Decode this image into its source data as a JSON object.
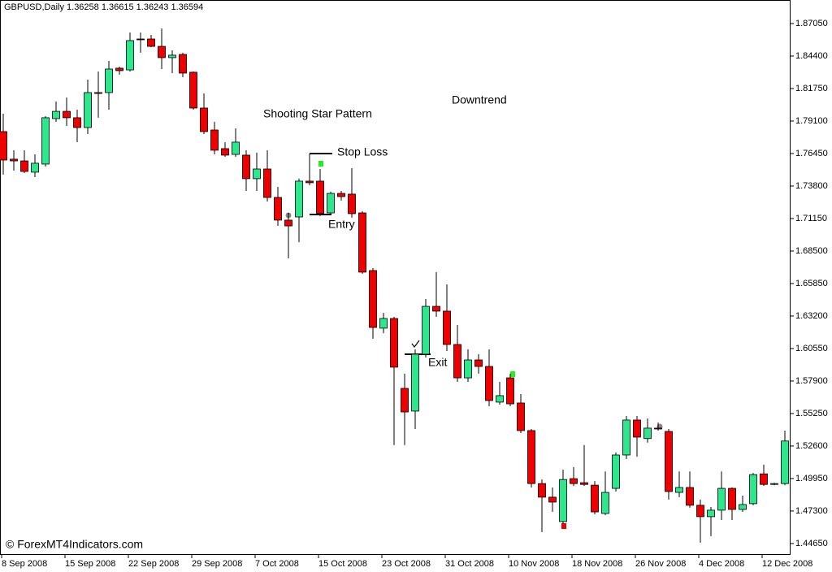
{
  "chart_data": {
    "type": "candlestick",
    "title": "GBPUSD,Daily  1.36258 1.36615 1.36243 1.36594",
    "categories": [
      "8 Sep 2008",
      null,
      null,
      null,
      null,
      null,
      "15 Sep 2008",
      null,
      null,
      null,
      null,
      null,
      "22 Sep 2008",
      null,
      null,
      null,
      null,
      null,
      "29 Sep 2008",
      null,
      null,
      null,
      null,
      null,
      "7 Oct 2008",
      null,
      null,
      null,
      null,
      null,
      "15 Oct 2008",
      null,
      null,
      null,
      null,
      null,
      "23 Oct 2008",
      null,
      null,
      null,
      null,
      null,
      "31 Oct 2008",
      null,
      null,
      null,
      null,
      null,
      "10 Nov 2008",
      null,
      null,
      null,
      null,
      null,
      "18 Nov 2008",
      null,
      null,
      null,
      null,
      null,
      "26 Nov 2008",
      null,
      null,
      null,
      null,
      null,
      "4 Dec 2008",
      null,
      null,
      null,
      null,
      null,
      "12 Dec 2008",
      null,
      null
    ],
    "open": [
      1.7824,
      1.7599,
      1.7585,
      1.7493,
      1.7559,
      1.793,
      1.7989,
      1.7937,
      1.7857,
      1.8142,
      1.8142,
      1.8341,
      1.8327,
      1.8579,
      1.8579,
      1.8519,
      1.8427,
      1.8453,
      1.8308,
      1.8016,
      1.7837,
      1.7685,
      1.7638,
      1.7632,
      1.744,
      1.7519,
      1.7287,
      1.7102,
      1.7128,
      1.742,
      1.742,
      1.7161,
      1.732,
      1.7314,
      1.7161,
      1.6691,
      1.6221,
      1.63,
      1.573,
      1.5545,
      1.6009,
      1.6399,
      1.636,
      1.6088,
      1.5816,
      1.5962,
      1.5909,
      1.5618,
      1.5816,
      1.5611,
      1.5386,
      1.4954,
      1.4843,
      1.4644,
      1.4994,
      1.4961,
      1.4941,
      1.471,
      1.4915,
      1.5187,
      1.5472,
      1.5321,
      1.5406,
      1.5379,
      1.4882,
      1.4922,
      1.4777,
      1.4684,
      1.4737,
      1.4915,
      1.4743,
      1.479,
      1.5033,
      1.4947,
      1.4954
    ],
    "high": [
      1.797,
      1.7672,
      1.7672,
      1.7638,
      1.795,
      1.8069,
      1.8102,
      1.8003,
      1.8248,
      1.8314,
      1.84,
      1.8354,
      1.8632,
      1.8632,
      1.8612,
      1.8665,
      1.8486,
      1.8467,
      1.8314,
      1.8135,
      1.7903,
      1.7738,
      1.785,
      1.7672,
      1.7652,
      1.7672,
      1.7373,
      1.7161,
      1.744,
      1.744,
      1.7519,
      1.7334,
      1.734,
      1.7526,
      1.7175,
      1.6711,
      1.6346,
      1.6313,
      1.585,
      1.6048,
      1.6459,
      1.6678,
      1.6578,
      1.6247,
      1.6048,
      1.6009,
      1.6048,
      1.5783,
      1.585,
      1.5684,
      1.5399,
      1.4987,
      1.4922,
      1.5068,
      1.5088,
      1.5268,
      1.4974,
      1.5053,
      1.5208,
      1.5505,
      1.5505,
      1.5485,
      1.5452,
      1.5399,
      1.5053,
      1.5053,
      1.4823,
      1.4763,
      1.5053,
      1.4922,
      1.4856,
      1.504,
      1.5108,
      1.4961,
      1.5386
    ],
    "low": [
      1.7473,
      1.7506,
      1.7486,
      1.7453,
      1.7539,
      1.7903,
      1.787,
      1.7738,
      1.7804,
      1.7937,
      1.8003,
      1.8288,
      1.8314,
      1.8467,
      1.8513,
      1.8334,
      1.8301,
      1.8268,
      1.8003,
      1.7804,
      1.7638,
      1.7618,
      1.7618,
      1.734,
      1.734,
      1.7254,
      1.7055,
      1.679,
      1.6923,
      1.7387,
      1.7135,
      1.7142,
      1.7261,
      1.7122,
      1.6664,
      1.6135,
      1.6181,
      1.5268,
      1.5268,
      1.5399,
      1.5982,
      1.6313,
      1.6035,
      1.5783,
      1.5783,
      1.585,
      1.5585,
      1.5598,
      1.5585,
      1.5366,
      1.4922,
      1.4558,
      1.4723,
      1.4624,
      1.4934,
      1.4934,
      1.4703,
      1.4697,
      1.4889,
      1.5154,
      1.5174,
      1.5288,
      1.5386,
      1.4823,
      1.4843,
      1.4757,
      1.4472,
      1.4525,
      1.4657,
      1.4657,
      1.4723,
      1.4777,
      1.4934,
      1.4941,
      1.4941
    ],
    "close": [
      1.7592,
      1.7585,
      1.7499,
      1.7566,
      1.7937,
      1.7989,
      1.7937,
      1.7857,
      1.8142,
      1.8135,
      1.8334,
      1.8321,
      1.8566,
      1.8573,
      1.8519,
      1.8427,
      1.8447,
      1.8301,
      1.8016,
      1.7824,
      1.7672,
      1.7632,
      1.7738,
      1.744,
      1.7519,
      1.7287,
      1.7102,
      1.7055,
      1.742,
      1.7407,
      1.7155,
      1.732,
      1.7294,
      1.7155,
      1.6678,
      1.6227,
      1.63,
      1.5903,
      1.5538,
      1.6009,
      1.6399,
      1.636,
      1.6088,
      1.5816,
      1.5962,
      1.5909,
      1.5631,
      1.5671,
      1.5604,
      1.5386,
      1.4954,
      1.4843,
      1.4803,
      1.4987,
      1.4954,
      1.4947,
      1.4723,
      1.4882,
      1.5187,
      1.5472,
      1.5333,
      1.5406,
      1.5399,
      1.4889,
      1.4922,
      1.4777,
      1.4684,
      1.4737,
      1.4915,
      1.4743,
      1.4783,
      1.5027,
      1.4947,
      1.4954,
      1.5301
    ],
    "up_color": "#2ee68c",
    "down_color": "#ee0000",
    "ylim": [
      1.4372,
      1.8897
    ],
    "yticks": [
      {
        "value": 1.8705,
        "label": "1.87050"
      },
      {
        "value": 1.844,
        "label": "1.84400"
      },
      {
        "value": 1.8175,
        "label": "1.81750"
      },
      {
        "value": 1.791,
        "label": "1.79100"
      },
      {
        "value": 1.7645,
        "label": "1.76450"
      },
      {
        "value": 1.738,
        "label": "1.73800"
      },
      {
        "value": 1.7115,
        "label": "1.71150"
      },
      {
        "value": 1.685,
        "label": "1.68500"
      },
      {
        "value": 1.6585,
        "label": "1.65850"
      },
      {
        "value": 1.632,
        "label": "1.63200"
      },
      {
        "value": 1.6055,
        "label": "1.60550"
      },
      {
        "value": 1.579,
        "label": "1.57900"
      },
      {
        "value": 1.5525,
        "label": "1.55250"
      },
      {
        "value": 1.526,
        "label": "1.52600"
      },
      {
        "value": 1.4995,
        "label": "1.49950"
      },
      {
        "value": 1.473,
        "label": "1.47300"
      },
      {
        "value": 1.4465,
        "label": "1.44650"
      }
    ],
    "grid": false,
    "annotations": [
      "Shooting Star Pattern",
      "Downtrend",
      "Stop Loss",
      "Entry",
      "Exit",
      "© ForexMT4Indicators.com"
    ]
  }
}
